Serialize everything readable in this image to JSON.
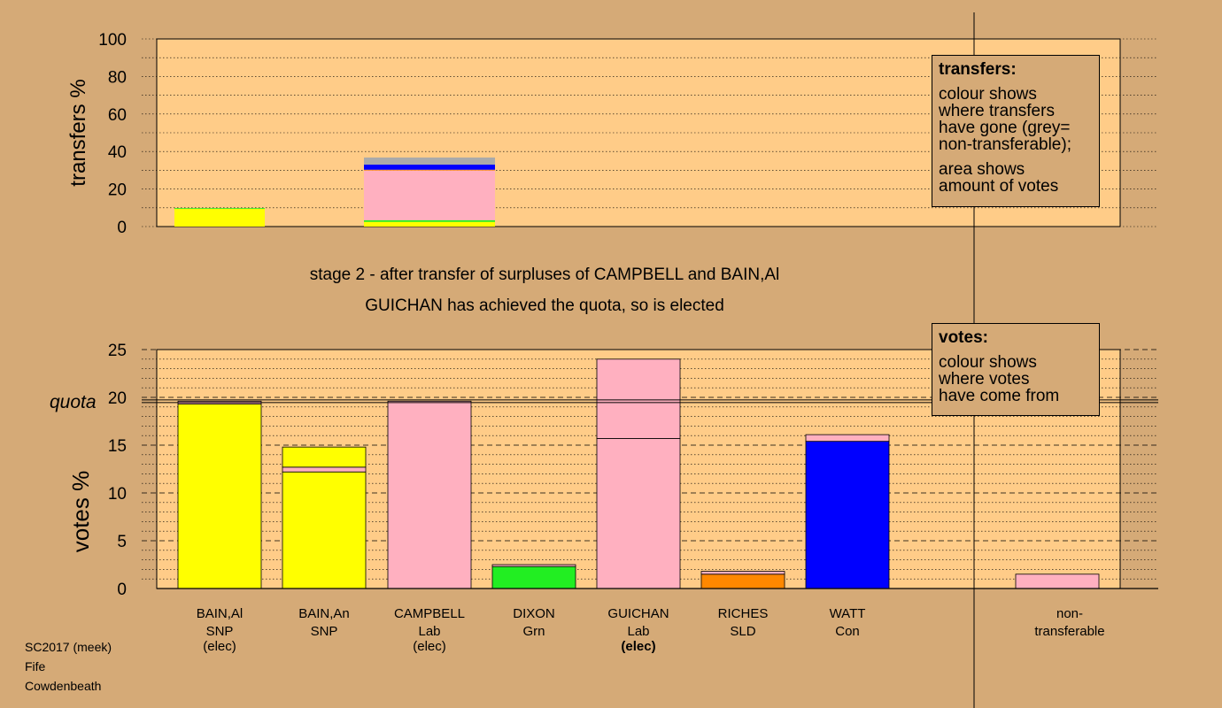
{
  "stage_line1": "stage 2 - after transfer of surpluses of CAMPBELL and BAIN,Al",
  "stage_line2": "GUICHAN has achieved the quota, so is elected",
  "footer": [
    "SC2017 (meek)",
    "Fife",
    "Cowdenbeath"
  ],
  "legend_transfers": {
    "title": "transfers:",
    "lines1": [
      "colour shows",
      "where transfers",
      "have gone (grey=",
      "non-transferable);"
    ],
    "lines2": [
      "area shows",
      "amount of votes"
    ]
  },
  "legend_votes": {
    "title": "votes:",
    "lines": [
      "colour shows",
      "where votes",
      "have come from"
    ]
  },
  "colors": {
    "background": "#d5aa77",
    "plot_bg": "#ffcc88",
    "SNP": "#ffff00",
    "Lab": "#ffb0c0",
    "Grn": "#22ee22",
    "SLD": "#ff8800",
    "Con": "#0000ff",
    "nontransferable": "#aaaaaa"
  },
  "chart_data": [
    {
      "type": "bar",
      "stacked": true,
      "ylabel": "transfers %",
      "ylim": [
        0,
        100
      ],
      "yticks": [
        0,
        20,
        40,
        60,
        80,
        100
      ],
      "bars": [
        {
          "segments": [
            {
              "party": "SNP",
              "value": 9.4
            },
            {
              "party": "Grn",
              "value": 0.4
            }
          ]
        },
        {
          "segments": [
            {
              "party": "SNP",
              "value": 2.5
            },
            {
              "party": "Grn",
              "value": 0.9
            },
            {
              "party": "Lab",
              "value": 26.5
            },
            {
              "party": "SLD",
              "value": 0.4
            },
            {
              "party": "Con",
              "value": 2.7
            },
            {
              "party": "nontransferable",
              "value": 3.8
            }
          ]
        }
      ]
    },
    {
      "type": "bar",
      "stacked": true,
      "ylabel": "votes %",
      "ylim": [
        0,
        25
      ],
      "yticks": [
        0,
        5,
        10,
        15,
        20,
        25
      ],
      "quota": 19.6,
      "quota_label": "quota",
      "candidates": [
        {
          "name": "BAIN,Al",
          "party": "SNP",
          "status": "(elec)",
          "status_bold": false,
          "segments": [
            {
              "party": "SNP",
              "value": 19.3
            },
            {
              "party": "Lab",
              "value": 0.3
            }
          ]
        },
        {
          "name": "BAIN,An",
          "party": "SNP",
          "status": "",
          "status_bold": false,
          "segments": [
            {
              "party": "SNP",
              "value": 12.2
            },
            {
              "party": "Lab",
              "value": 0.5
            },
            {
              "party": "SNP",
              "value": 2.1
            }
          ]
        },
        {
          "name": "CAMPBELL",
          "party": "Lab",
          "status": "(elec)",
          "status_bold": false,
          "segments": [
            {
              "party": "Lab",
              "value": 19.6
            }
          ]
        },
        {
          "name": "DIXON",
          "party": "Grn",
          "status": "",
          "status_bold": false,
          "segments": [
            {
              "party": "Grn",
              "value": 2.3
            },
            {
              "party": "Lab",
              "value": 0.2
            }
          ]
        },
        {
          "name": "GUICHAN",
          "party": "Lab",
          "status": "(elec)",
          "status_bold": true,
          "segments": [
            {
              "party": "Lab",
              "value": 15.7
            },
            {
              "party": "Lab",
              "value": 8.3
            }
          ]
        },
        {
          "name": "RICHES",
          "party": "SLD",
          "status": "",
          "status_bold": false,
          "segments": [
            {
              "party": "SLD",
              "value": 1.5
            },
            {
              "party": "Lab",
              "value": 0.3
            }
          ]
        },
        {
          "name": "WATT",
          "party": "Con",
          "status": "",
          "status_bold": false,
          "segments": [
            {
              "party": "Con",
              "value": 15.4
            },
            {
              "party": "Lab",
              "value": 0.7
            }
          ]
        }
      ],
      "nontransferable": {
        "label1": "non-",
        "label2": "transferable",
        "segments": [
          {
            "party": "Lab",
            "value": 1.5
          }
        ]
      }
    }
  ]
}
